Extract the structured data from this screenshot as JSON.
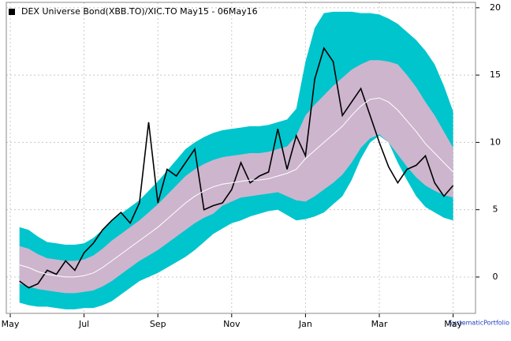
{
  "chart_data": {
    "type": "band-line",
    "categories": [
      "May",
      null,
      null,
      null,
      null,
      null,
      null,
      null,
      "Jul",
      null,
      null,
      null,
      null,
      null,
      null,
      null,
      "Sep",
      null,
      null,
      null,
      null,
      null,
      null,
      null,
      "Nov",
      null,
      null,
      null,
      null,
      null,
      null,
      null,
      "Jan",
      null,
      null,
      null,
      null,
      null,
      null,
      null,
      "Mar",
      null,
      null,
      null,
      null,
      null,
      null,
      null,
      "May",
      null
    ],
    "series": [
      {
        "name": "DEX Universe Bond(XBB.TO)/XIC.TO May15 - 06May16",
        "color": "#000000",
        "values": [
          null,
          -0.3,
          -0.8,
          -0.5,
          0.5,
          0.2,
          1.2,
          0.5,
          1.8,
          2.5,
          3.5,
          4.2,
          4.8,
          4.0,
          5.5,
          11.5,
          5.5,
          8.0,
          7.5,
          8.5,
          9.5,
          5.0,
          5.3,
          5.5,
          6.5,
          8.5,
          7.0,
          7.5,
          7.8,
          11.0,
          8.0,
          10.5,
          9.0,
          14.7,
          17.0,
          16.0,
          12.0,
          13.0,
          14.0,
          12.0,
          10.0,
          8.2,
          7.0,
          8.0,
          8.3,
          9.0,
          7.0,
          6.0,
          6.8,
          null
        ]
      },
      {
        "color": "#ffffff",
        "values": [
          null,
          0.9,
          0.7,
          0.4,
          0.2,
          0.1,
          0,
          0,
          0.1,
          0.3,
          0.7,
          1.2,
          1.7,
          2.2,
          2.7,
          3.2,
          3.7,
          4.3,
          4.9,
          5.5,
          6.0,
          6.4,
          6.7,
          6.9,
          7.0,
          7.1,
          7.2,
          7.2,
          7.3,
          7.5,
          7.7,
          8.0,
          8.8,
          9.4,
          10.0,
          10.6,
          11.2,
          12.0,
          12.7,
          13.2,
          13.3,
          13.0,
          12.4,
          11.6,
          10.8,
          9.9,
          9.2,
          8.5,
          7.8,
          null
        ]
      }
    ],
    "bands": [
      {
        "color": "#00c5cd",
        "lower": [
          null,
          -1.9,
          -2.1,
          -2.2,
          -2.2,
          -2.3,
          -2.4,
          -2.4,
          -2.3,
          -2.3,
          -2.1,
          -1.8,
          -1.3,
          -0.8,
          -0.3,
          0.0,
          0.3,
          0.7,
          1.1,
          1.5,
          2.0,
          2.6,
          3.2,
          3.6,
          4.0,
          4.2,
          4.5,
          4.7,
          4.9,
          5.0,
          4.6,
          4.2,
          4.3,
          4.5,
          4.8,
          5.4,
          6.0,
          7.2,
          8.8,
          10.0,
          10.5,
          10.0,
          8.5,
          7.2,
          6.0,
          5.2,
          4.8,
          4.4,
          4.2,
          null
        ],
        "upper": [
          null,
          3.7,
          3.5,
          3.0,
          2.6,
          2.5,
          2.4,
          2.4,
          2.5,
          2.9,
          3.5,
          4.2,
          4.7,
          5.2,
          5.7,
          6.4,
          7.1,
          7.9,
          8.7,
          9.5,
          10.0,
          10.4,
          10.7,
          10.9,
          11.0,
          11.1,
          11.2,
          11.2,
          11.3,
          11.5,
          11.7,
          12.5,
          16.0,
          18.5,
          19.6,
          19.7,
          19.7,
          19.7,
          19.6,
          19.6,
          19.5,
          19.2,
          18.8,
          18.2,
          17.6,
          16.8,
          15.8,
          14.2,
          12.3,
          null
        ]
      },
      {
        "color": "#cdb5cd",
        "lower": [
          null,
          -0.5,
          -0.7,
          -0.9,
          -1.0,
          -1.1,
          -1.2,
          -1.2,
          -1.1,
          -1.0,
          -0.7,
          -0.3,
          0.2,
          0.7,
          1.2,
          1.6,
          2.0,
          2.5,
          3.0,
          3.5,
          4.0,
          4.4,
          4.7,
          5.3,
          5.6,
          5.9,
          6.0,
          6.1,
          6.2,
          6.3,
          6.0,
          5.7,
          5.6,
          6.0,
          6.5,
          7.0,
          7.6,
          8.5,
          9.6,
          10.3,
          10.6,
          10.0,
          9.1,
          8.2,
          7.4,
          6.8,
          6.4,
          6.1,
          5.9,
          null
        ],
        "upper": [
          null,
          2.3,
          2.1,
          1.7,
          1.4,
          1.3,
          1.2,
          1.2,
          1.3,
          1.6,
          2.1,
          2.7,
          3.2,
          3.7,
          4.2,
          4.8,
          5.4,
          6.1,
          6.8,
          7.5,
          8.0,
          8.4,
          8.7,
          8.9,
          9.0,
          9.1,
          9.2,
          9.2,
          9.3,
          9.5,
          9.7,
          10.5,
          12.0,
          12.8,
          13.5,
          14.2,
          14.8,
          15.4,
          15.8,
          16.1,
          16.1,
          16.0,
          15.8,
          15.0,
          14.1,
          13.0,
          12.0,
          10.8,
          9.6,
          null
        ]
      }
    ],
    "ylim": [
      -2.7,
      20.4
    ],
    "yticks": [
      0,
      5,
      10,
      15,
      20
    ],
    "grid": true,
    "y_axis_side": "right",
    "legend": "top-left",
    "footer": "SystematicPortfolio"
  }
}
